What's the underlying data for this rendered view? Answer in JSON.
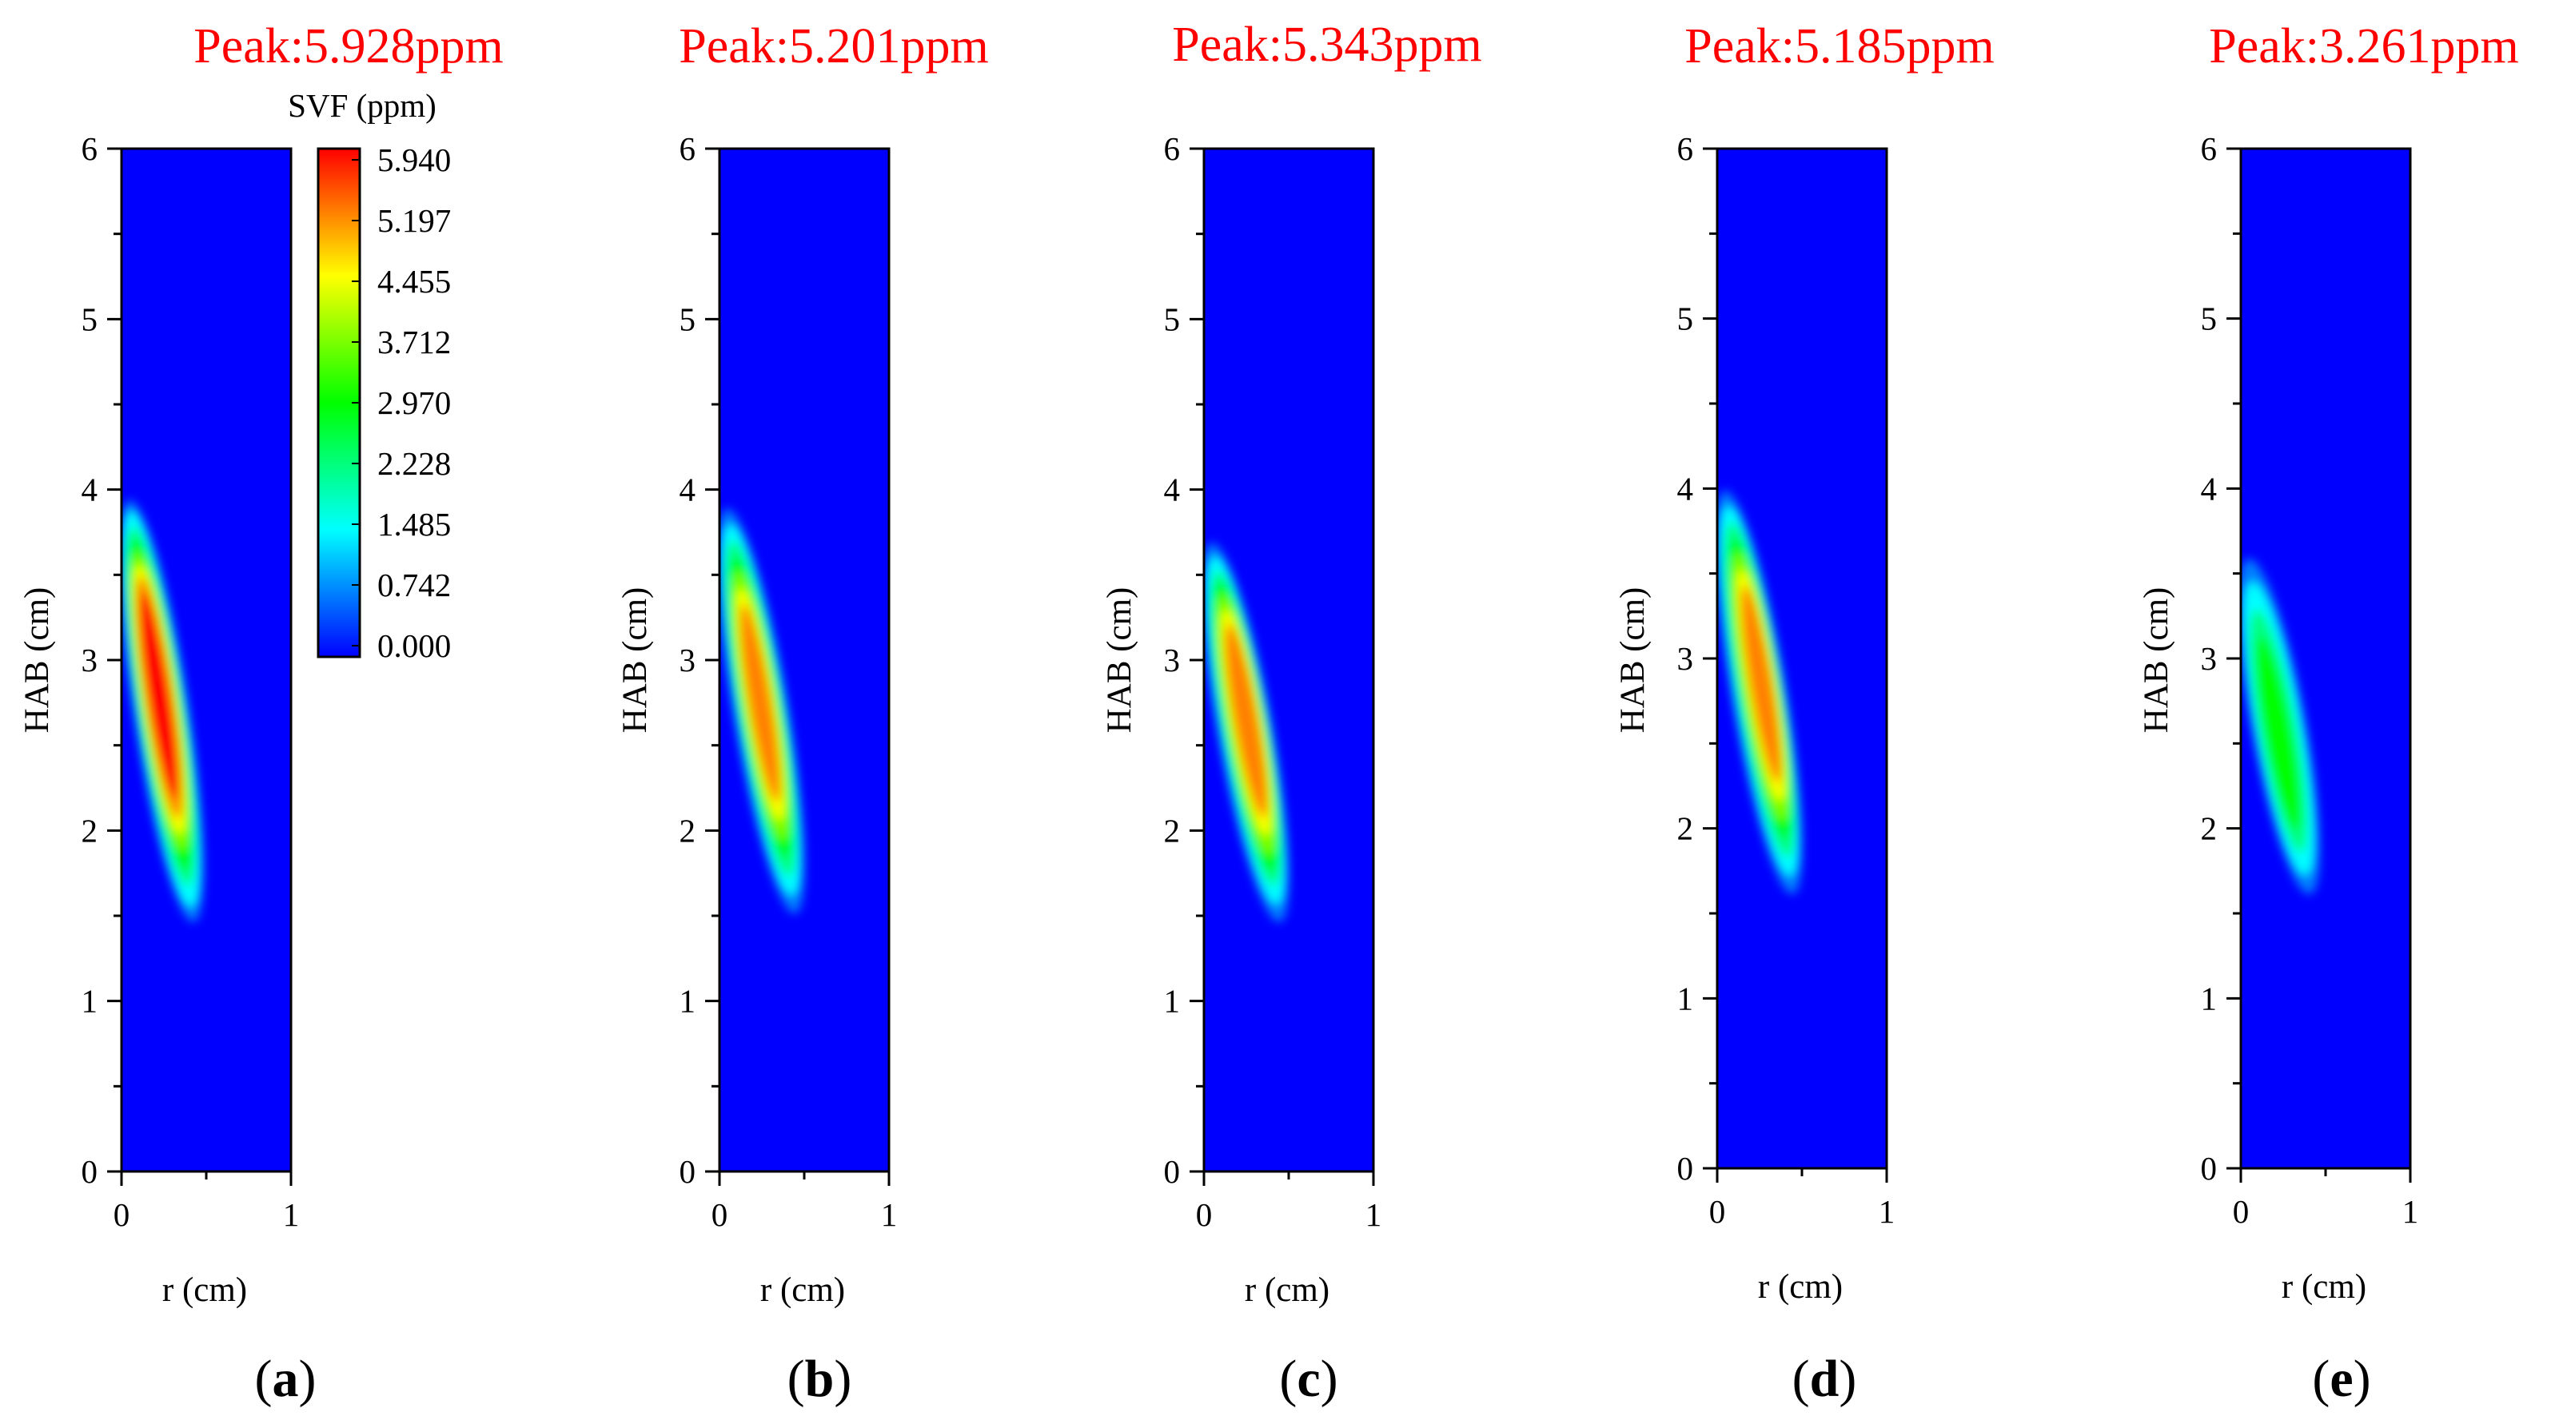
{
  "figure_caption_letters": [
    "a",
    "b",
    "c",
    "d",
    "e"
  ],
  "colors": {
    "background": "#0000ff",
    "peak_text": "#ff0000",
    "axis": "#000000"
  },
  "colorbar": {
    "title": "SVF (ppm)",
    "tick_labels": [
      "5.940",
      "5.197",
      "4.455",
      "3.712",
      "2.970",
      "2.228",
      "1.485",
      "0.742",
      "0.000"
    ],
    "min": 0.0,
    "max": 5.94,
    "colormap": [
      "#0000ff",
      "#0080ff",
      "#00ffff",
      "#00ff80",
      "#00ff00",
      "#80ff00",
      "#ffff00",
      "#ff8000",
      "#ff0000"
    ]
  },
  "chart_data": [
    {
      "type": "heatmap",
      "panel": "a",
      "title": "Peak:5.928ppm",
      "peak_value": 5.928,
      "xlabel": "r (cm)",
      "ylabel": "HAB (cm)",
      "xlim": [
        0,
        1
      ],
      "ylim": [
        0,
        6
      ],
      "x_ticks": [
        "0",
        "1"
      ],
      "y_ticks": [
        "0",
        "1",
        "2",
        "3",
        "4",
        "5",
        "6"
      ],
      "plume": {
        "r_top": 0.05,
        "hab_top": 3.9,
        "r_bottom": 0.42,
        "hab_bottom": 1.5,
        "r_peak": 0.22,
        "hab_peak": 2.8
      }
    },
    {
      "type": "heatmap",
      "panel": "b",
      "title": "Peak:5.201ppm",
      "peak_value": 5.201,
      "xlabel": "r (cm)",
      "ylabel": "HAB (cm)",
      "xlim": [
        0,
        1
      ],
      "ylim": [
        0,
        6
      ],
      "x_ticks": [
        "0",
        "1"
      ],
      "y_ticks": [
        "0",
        "1",
        "2",
        "3",
        "4",
        "5",
        "6"
      ],
      "plume": {
        "r_top": 0.05,
        "hab_top": 3.85,
        "r_bottom": 0.44,
        "hab_bottom": 1.55,
        "r_peak": 0.24,
        "hab_peak": 2.75
      }
    },
    {
      "type": "heatmap",
      "panel": "c",
      "title": "Peak:5.343ppm",
      "peak_value": 5.343,
      "xlabel": "r (cm)",
      "ylabel": "HAB (cm)",
      "xlim": [
        0,
        1
      ],
      "ylim": [
        0,
        6
      ],
      "x_ticks": [
        "0",
        "1"
      ],
      "y_ticks": [
        "0",
        "1",
        "2",
        "3",
        "4",
        "5",
        "6"
      ],
      "plume": {
        "r_top": 0.05,
        "hab_top": 3.65,
        "r_bottom": 0.44,
        "hab_bottom": 1.5,
        "r_peak": 0.25,
        "hab_peak": 2.65
      }
    },
    {
      "type": "heatmap",
      "panel": "d",
      "title": "Peak:5.185ppm",
      "peak_value": 5.185,
      "xlabel": "r (cm)",
      "ylabel": "HAB (cm)",
      "xlim": [
        0,
        1
      ],
      "ylim": [
        0,
        6
      ],
      "x_ticks": [
        "0",
        "1"
      ],
      "y_ticks": [
        "0",
        "1",
        "2",
        "3",
        "4",
        "5",
        "6"
      ],
      "plume": {
        "r_top": 0.05,
        "hab_top": 3.95,
        "r_bottom": 0.44,
        "hab_bottom": 1.65,
        "r_peak": 0.26,
        "hab_peak": 2.85
      }
    },
    {
      "type": "heatmap",
      "panel": "e",
      "title": "Peak:3.261ppm",
      "peak_value": 3.261,
      "xlabel": "r (cm)",
      "ylabel": "HAB (cm)",
      "xlim": [
        0,
        1
      ],
      "ylim": [
        0,
        6
      ],
      "x_ticks": [
        "0",
        "1"
      ],
      "y_ticks": [
        "0",
        "1",
        "2",
        "3",
        "4",
        "5",
        "6"
      ],
      "plume": {
        "r_top": 0.05,
        "hab_top": 3.55,
        "r_bottom": 0.4,
        "hab_bottom": 1.65,
        "r_peak": 0.22,
        "hab_peak": 2.55
      }
    }
  ]
}
